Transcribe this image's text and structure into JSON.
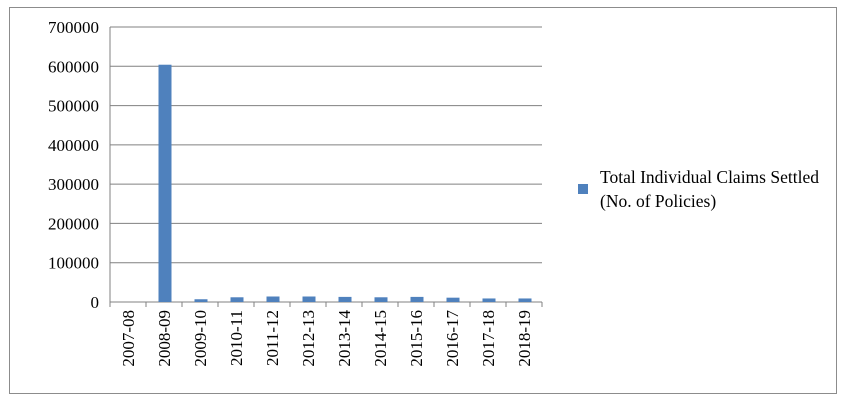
{
  "chart_data": {
    "type": "bar",
    "title": "",
    "xlabel": "",
    "ylabel": "",
    "categories": [
      "2007-08",
      "2008-09",
      "2009-10",
      "2010-11",
      "2011-12",
      "2012-13",
      "2013-14",
      "2014-15",
      "2015-16",
      "2016-17",
      "2017-18",
      "2018-19"
    ],
    "series": [
      {
        "name": "Total Individual Claims Settled (No. of Policies)",
        "color": "#4f81bd",
        "values": [
          0,
          604000,
          7000,
          12000,
          14000,
          14000,
          13000,
          12000,
          13000,
          11000,
          9000,
          9000
        ]
      }
    ],
    "ylim": [
      0,
      700000
    ],
    "yticks": [
      "0",
      "100000",
      "200000",
      "300000",
      "400000",
      "500000",
      "600000",
      "700000"
    ],
    "grid": true,
    "legend_position": "right"
  }
}
